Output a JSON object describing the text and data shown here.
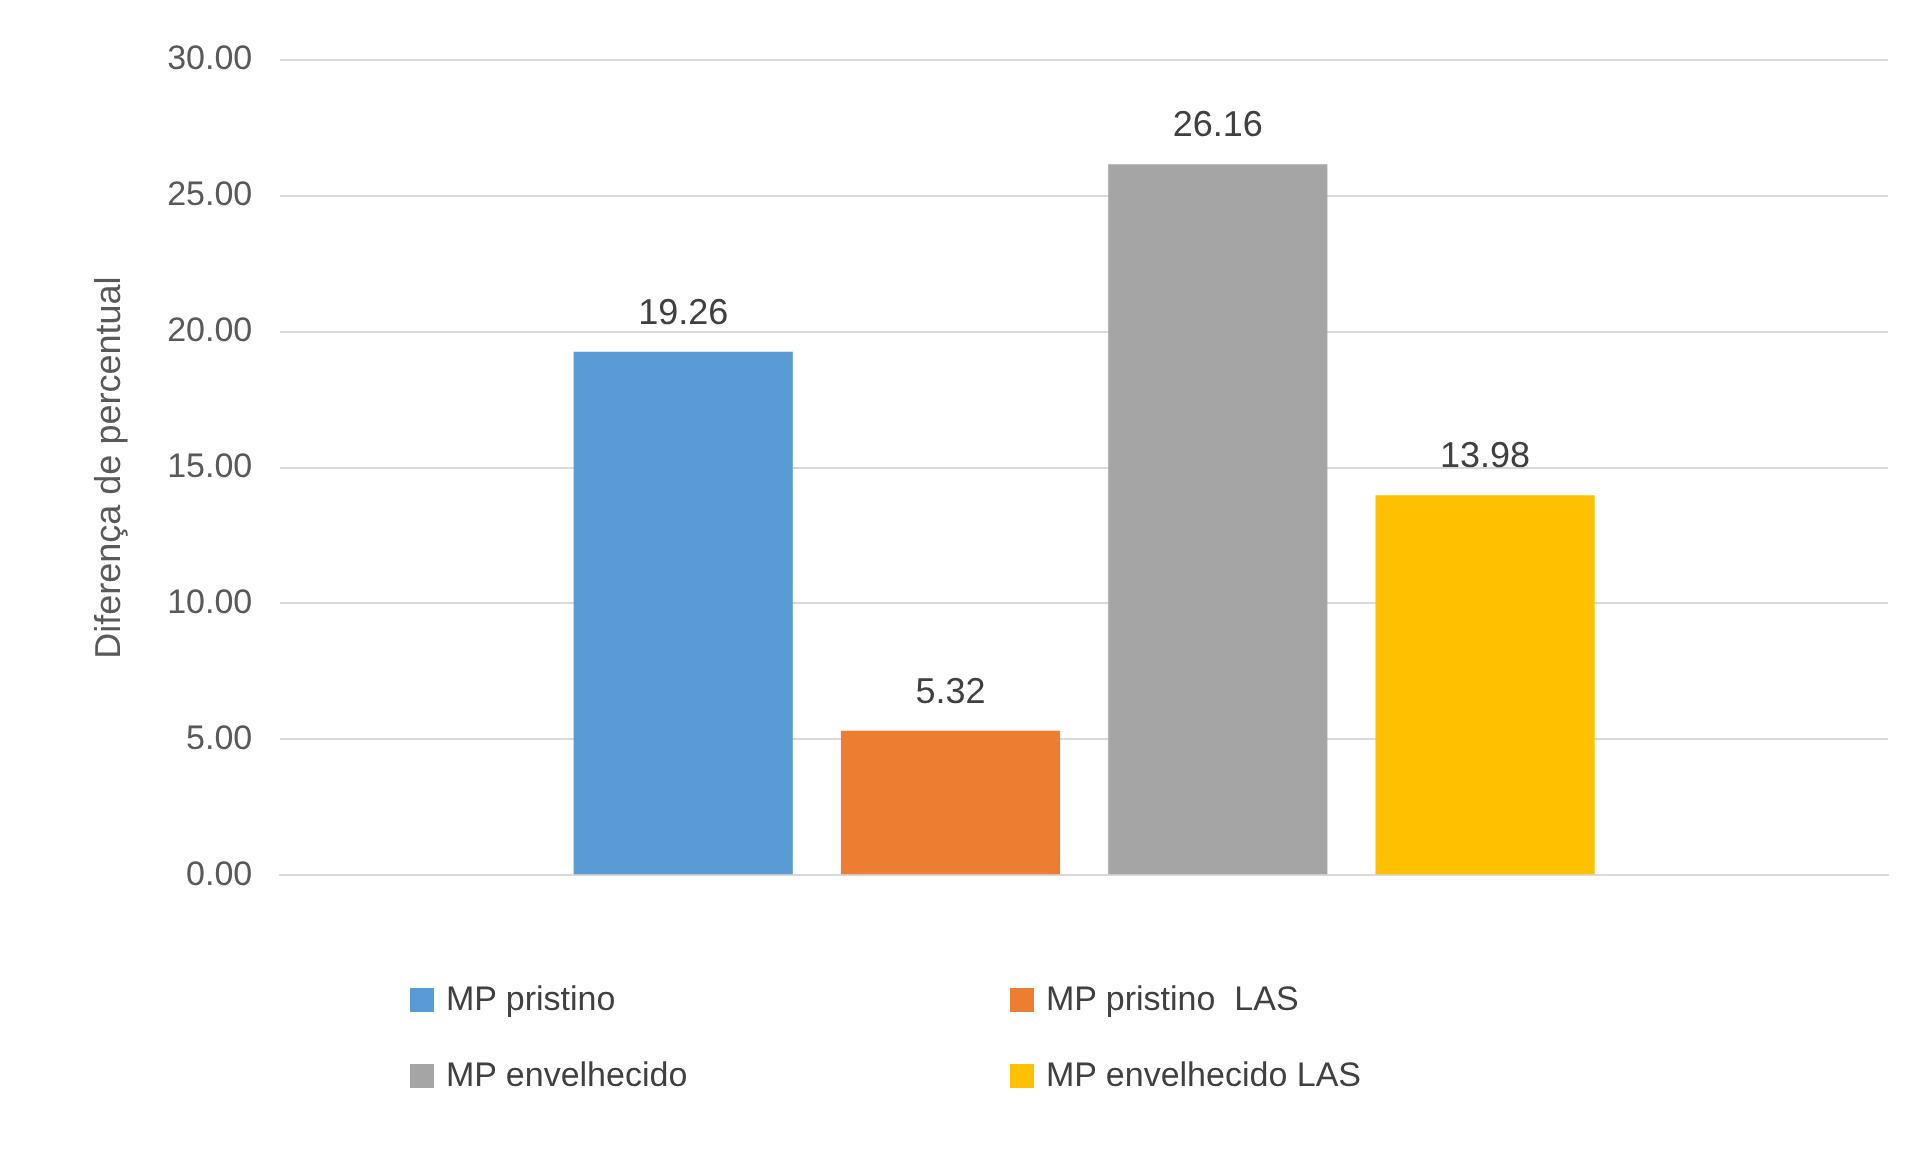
{
  "chart_data": {
    "type": "bar",
    "ylabel": "Diferença de percentual",
    "categories": [
      null
    ],
    "series": [
      {
        "name": "MP pristino",
        "color": "#5b9bd5",
        "values": [
          19.26
        ]
      },
      {
        "name": "MP pristino  LAS",
        "color": "#ed7d31",
        "values": [
          5.32
        ]
      },
      {
        "name": "MP envelhecido",
        "color": "#a5a5a5",
        "values": [
          26.16
        ]
      },
      {
        "name": "MP envelhecido LAS",
        "color": "#ffc000",
        "values": [
          13.98
        ]
      }
    ],
    "ylim": [
      0,
      30
    ],
    "yticks": [
      {
        "value": 0,
        "label": "0.00"
      },
      {
        "value": 5,
        "label": "5.00"
      },
      {
        "value": 10,
        "label": "10.00"
      },
      {
        "value": 15,
        "label": "15.00"
      },
      {
        "value": 20,
        "label": "20.00"
      },
      {
        "value": 25,
        "label": "25.00"
      },
      {
        "value": 30,
        "label": "30.00"
      }
    ],
    "grid": "y",
    "legend": "bottom",
    "data_labels": true
  }
}
